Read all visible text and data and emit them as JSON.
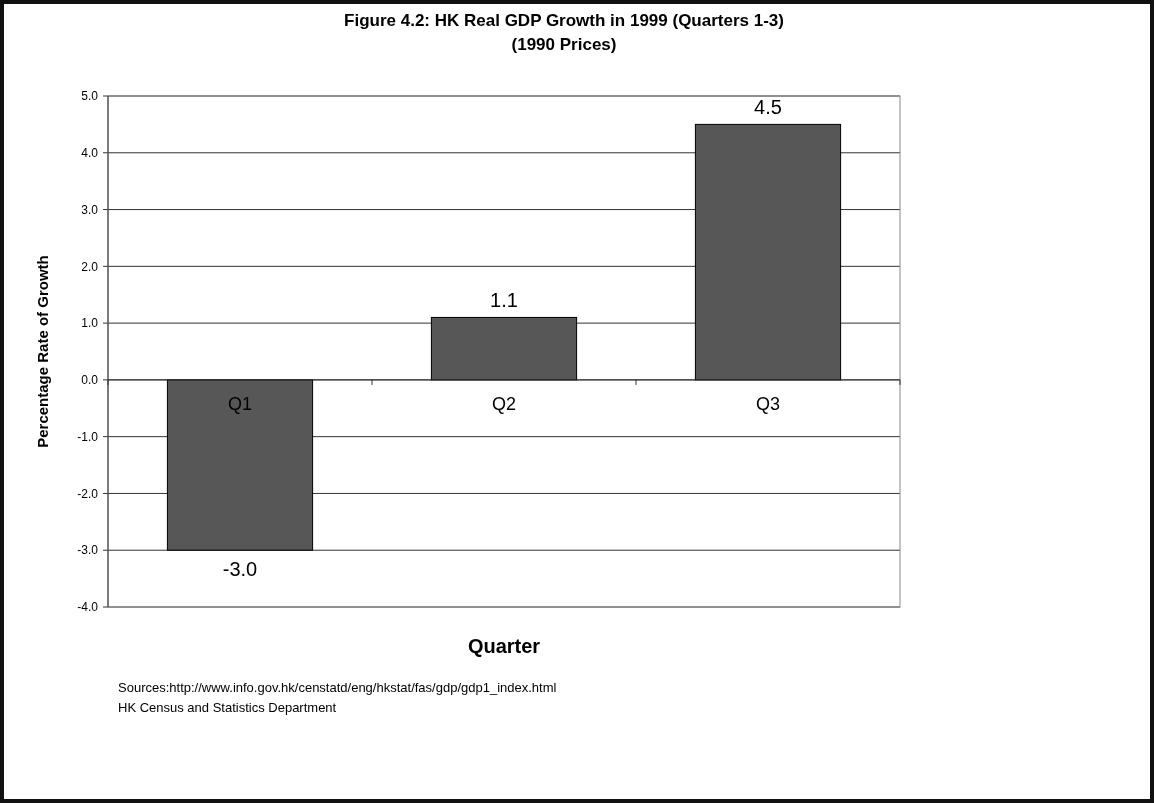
{
  "chart_data": {
    "type": "bar",
    "title": "Figure 4.2: HK Real GDP Growth in 1999 (Quarters 1-3)",
    "subtitle": "(1990 Prices)",
    "xlabel": "Quarter",
    "ylabel": "Percentage Rate of Growth",
    "categories": [
      "Q1",
      "Q2",
      "Q3"
    ],
    "values": [
      -3.0,
      1.1,
      4.5
    ],
    "color": "#575757",
    "value_labels": [
      "-3.0",
      "1.1",
      "4.5"
    ],
    "ylim": [
      -4,
      5
    ],
    "yticks": [
      {
        "value": -4,
        "label": "-4.0"
      },
      {
        "value": -3,
        "label": "-3.0"
      },
      {
        "value": -2,
        "label": "-2.0"
      },
      {
        "value": -1,
        "label": "-1.0"
      },
      {
        "value": 0,
        "label": "0.0"
      },
      {
        "value": 1,
        "label": "1.0"
      },
      {
        "value": 2,
        "label": "2.0"
      },
      {
        "value": 3,
        "label": "3.0"
      },
      {
        "value": 4,
        "label": "4.0"
      },
      {
        "value": 5,
        "label": "5.0"
      }
    ],
    "grid": "y",
    "annotations": [
      "Sources:http://www.info.gov.hk/censtatd/eng/hkstat/fas/gdp/gdp1_index.html",
      "HK Census and Statistics Department"
    ]
  }
}
